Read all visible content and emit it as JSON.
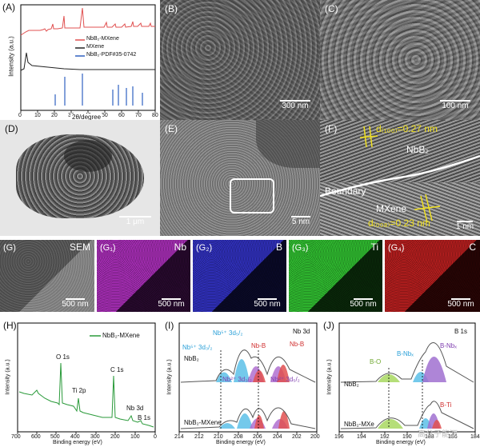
{
  "A": {
    "label": "(A)",
    "ylabel": "Intensity (a.u.)",
    "xlabel": "2θ/degree",
    "xticks": [
      "0",
      "10",
      "20",
      "30",
      "40",
      "50",
      "60",
      "70",
      "80"
    ],
    "legend": [
      "NbB₂-MXene",
      "MXene",
      "NbB₂-PDF#35-0742"
    ],
    "colors": {
      "nbb2mx": "#e05050",
      "mxene": "#222222",
      "pdf": "#3060c0"
    },
    "pdf_positions_deg": [
      26,
      32,
      43,
      57,
      61,
      66,
      70,
      76
    ]
  },
  "B": {
    "label": "(B)",
    "scale": "300 nm"
  },
  "C": {
    "label": "(C)",
    "scale": "100 nm"
  },
  "D": {
    "label": "(D)",
    "scale": "1 μm"
  },
  "E": {
    "label": "(E)",
    "scale": "5 nm"
  },
  "F": {
    "label": "(F)",
    "d1": "d₍₁₀₀₎=0.27 nm",
    "nbb2": "NbB₂",
    "boundary": "Boundary",
    "mxene": "MXene",
    "d2": "d₍₀₀₈₎=0.23 nm",
    "scale": "1 nm"
  },
  "G": [
    {
      "label": "(G)",
      "element": "SEM",
      "scale": "500 nm",
      "color": "#8a8a8a"
    },
    {
      "label": "(G₁)",
      "element": "Nb",
      "scale": "500 nm",
      "color": "#a030b0"
    },
    {
      "label": "(G₂)",
      "element": "B",
      "scale": "500 nm",
      "color": "#3030c0"
    },
    {
      "label": "(G₃)",
      "element": "Ti",
      "scale": "500 nm",
      "color": "#30c030"
    },
    {
      "label": "(G₄)",
      "element": "C",
      "scale": "500 nm",
      "color": "#c02020"
    }
  ],
  "H": {
    "label": "(H)",
    "legend": "NbB₂-MXene",
    "ylabel": "Intensity (a.u.)",
    "xlabel": "Binding energy (eV)",
    "xticks": [
      "700",
      "600",
      "500",
      "400",
      "300",
      "200",
      "100",
      "0"
    ],
    "peaks": [
      "O 1s",
      "Ti 2p",
      "C 1s",
      "Nb 3d",
      "B 1s"
    ]
  },
  "I": {
    "label": "(I)",
    "title": "Nb 3d",
    "ylabel": "Intensity (a.u.)",
    "xlabel": "Binding energy (eV)",
    "xticks": [
      "214",
      "212",
      "210",
      "208",
      "206",
      "204",
      "202",
      "200"
    ],
    "s1": "NbB₂",
    "s2": "NbB₂-MXene",
    "p1": "Nb⁵⁺ 3d₃/₂",
    "p2": "Nb⁵⁺ 3d₅/₂",
    "p3": "Nb-B",
    "p4": "Nb-B",
    "p5": "Nb²⁺ 3d₃/₂",
    "p6": "Nb²⁺ 3d₅/₂"
  },
  "J": {
    "label": "(J)",
    "title": "B 1s",
    "ylabel": "Intensity (a.u.)",
    "xlabel": "Binding energy (eV)",
    "xticks": [
      "196",
      "194",
      "192",
      "190",
      "188",
      "186",
      "184"
    ],
    "s1": "NbB₂",
    "s2": "NbB₂-MXe",
    "p1": "B-O",
    "p2": "B-Nbₓ",
    "p3": "B-Nbₓ",
    "p4": "B-Ti",
    "watermark": "高分子能源"
  }
}
